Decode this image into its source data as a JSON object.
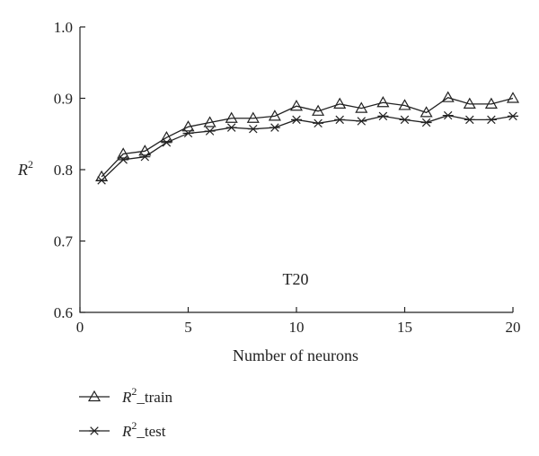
{
  "chart_data": {
    "type": "line",
    "ylabel_base": "R",
    "ylabel_sup": "2",
    "xlabel": "Number of neurons",
    "annotation": "T20",
    "xlim": [
      0,
      20
    ],
    "ylim": [
      0.6,
      1.0
    ],
    "xticks": [
      0,
      5,
      10,
      15,
      20
    ],
    "yticks": [
      0.6,
      0.7,
      0.8,
      0.9,
      1.0
    ],
    "xtick_labels": [
      "0",
      "5",
      "10",
      "15",
      "20"
    ],
    "ytick_labels": [
      "0.6",
      "0.7",
      "0.8",
      "0.9",
      "1.0"
    ],
    "grid": false,
    "legend_position": "bottom-left",
    "x": [
      1,
      2,
      3,
      4,
      5,
      6,
      7,
      8,
      9,
      10,
      11,
      12,
      13,
      14,
      15,
      16,
      17,
      18,
      19,
      20
    ],
    "series": [
      {
        "name_base": "R",
        "name_sup": "2",
        "name_suffix": "_train",
        "marker": "triangle",
        "values": [
          0.79,
          0.822,
          0.826,
          0.845,
          0.86,
          0.866,
          0.872,
          0.872,
          0.875,
          0.889,
          0.882,
          0.892,
          0.886,
          0.894,
          0.89,
          0.88,
          0.901,
          0.892,
          0.892,
          0.9
        ]
      },
      {
        "name_base": "R",
        "name_sup": "2",
        "name_suffix": "_test",
        "marker": "asterisk",
        "values": [
          0.785,
          0.814,
          0.818,
          0.838,
          0.851,
          0.854,
          0.859,
          0.857,
          0.859,
          0.87,
          0.865,
          0.87,
          0.868,
          0.875,
          0.87,
          0.866,
          0.876,
          0.87,
          0.87,
          0.875
        ]
      }
    ]
  }
}
